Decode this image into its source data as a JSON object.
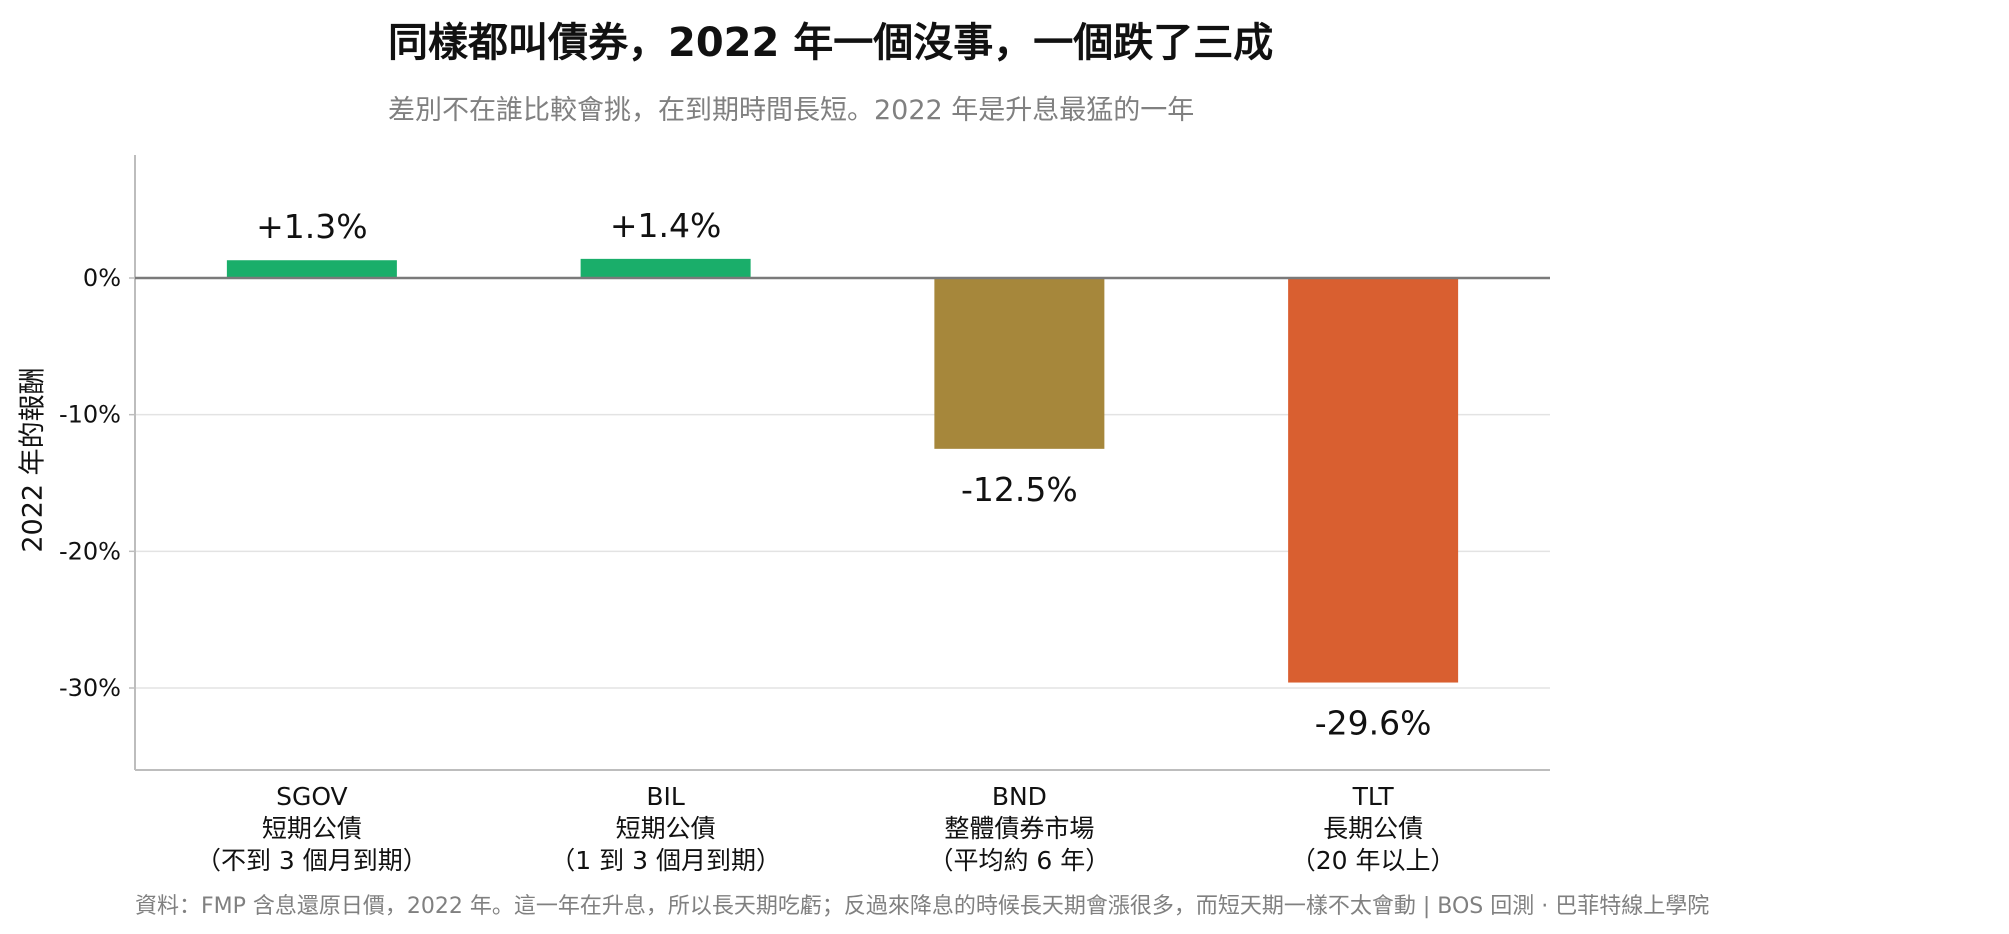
{
  "chart_data": {
    "type": "bar",
    "title": "同樣都叫債券，2022 年一個沒事，一個跌了三成",
    "subtitle": "差別不在誰比較會挑，在到期時間長短。2022 年是升息最猛的一年",
    "ylabel": "2022 年的報酬",
    "xlabel": "",
    "ylim": [
      -36,
      9
    ],
    "yticks": [
      0,
      -10,
      -20,
      -30
    ],
    "ytick_labels": [
      "0%",
      "-10%",
      "-20%",
      "-30%"
    ],
    "grid": true,
    "categories": [
      {
        "lines": [
          "SGOV",
          "短期公債",
          "（不到 3 個月到期）"
        ]
      },
      {
        "lines": [
          "BIL",
          "短期公債",
          "（1 到 3 個月到期）"
        ]
      },
      {
        "lines": [
          "BND",
          "整體債券市場",
          "（平均約 6 年）"
        ]
      },
      {
        "lines": [
          "TLT",
          "長期公債",
          "（20 年以上）"
        ]
      }
    ],
    "values": [
      1.3,
      1.4,
      -12.5,
      -29.6
    ],
    "value_labels": [
      "+1.3%",
      "+1.4%",
      "-12.5%",
      "-29.6%"
    ],
    "colors": [
      "#1aae6a",
      "#1aae6a",
      "#a6873b",
      "#d95f30"
    ]
  },
  "footer": "資料：FMP 含息還原日價，2022 年。這一年在升息，所以長天期吃虧；反過來降息的時候長天期會漲很多，而短天期一樣不太會動 | BOS 回測 ·   巴菲特線上學院"
}
